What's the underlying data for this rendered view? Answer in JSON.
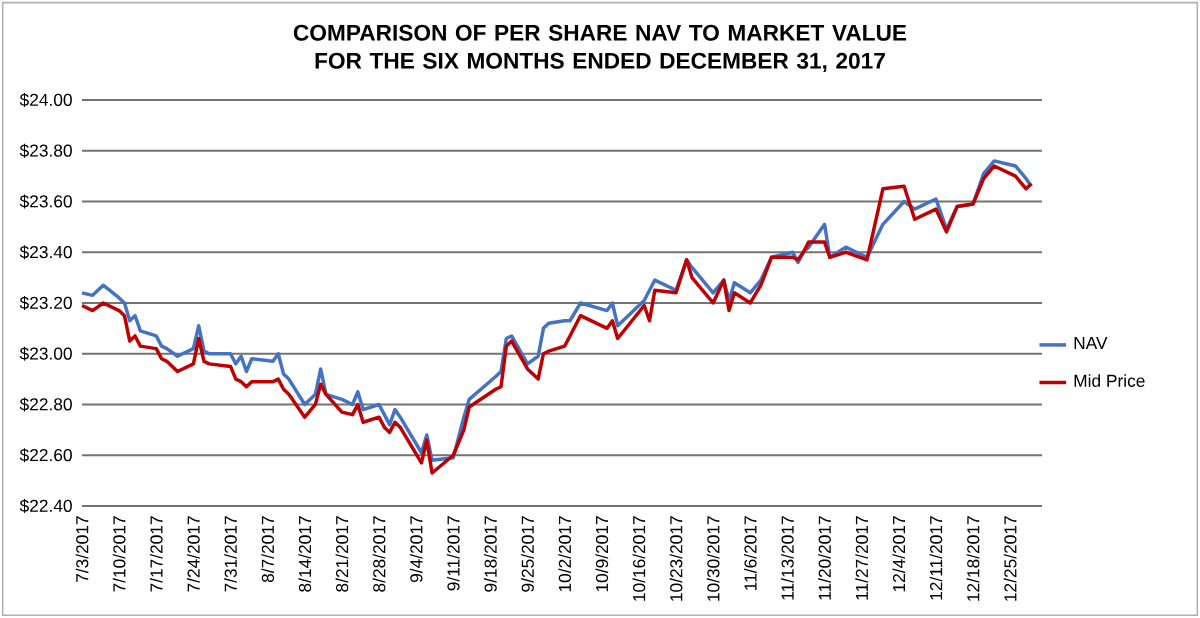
{
  "chart_data": {
    "type": "line",
    "title": "COMPARISON OF PER SHARE NAV TO MARKET VALUE FOR THE SIX MONTHS ENDED DECEMBER 31, 2017",
    "x": [
      "2017-07-03",
      "2017-07-05",
      "2017-07-07",
      "2017-07-10",
      "2017-07-11",
      "2017-07-12",
      "2017-07-13",
      "2017-07-14",
      "2017-07-17",
      "2017-07-18",
      "2017-07-19",
      "2017-07-21",
      "2017-07-24",
      "2017-07-25",
      "2017-07-26",
      "2017-07-27",
      "2017-07-31",
      "2017-08-01",
      "2017-08-02",
      "2017-08-03",
      "2017-08-04",
      "2017-08-08",
      "2017-08-09",
      "2017-08-10",
      "2017-08-11",
      "2017-08-14",
      "2017-08-16",
      "2017-08-17",
      "2017-08-18",
      "2017-08-21",
      "2017-08-23",
      "2017-08-24",
      "2017-08-25",
      "2017-08-28",
      "2017-08-29",
      "2017-08-30",
      "2017-08-31",
      "2017-09-01",
      "2017-09-05",
      "2017-09-06",
      "2017-09-07",
      "2017-09-11",
      "2017-09-13",
      "2017-09-14",
      "2017-09-19",
      "2017-09-20",
      "2017-09-21",
      "2017-09-22",
      "2017-09-25",
      "2017-09-27",
      "2017-09-28",
      "2017-09-29",
      "2017-10-02",
      "2017-10-03",
      "2017-10-05",
      "2017-10-10",
      "2017-10-11",
      "2017-10-12",
      "2017-10-17",
      "2017-10-18",
      "2017-10-19",
      "2017-10-23",
      "2017-10-25",
      "2017-10-26",
      "2017-10-30",
      "2017-11-01",
      "2017-11-02",
      "2017-11-03",
      "2017-11-06",
      "2017-11-08",
      "2017-11-10",
      "2017-11-14",
      "2017-11-15",
      "2017-11-16",
      "2017-11-17",
      "2017-11-20",
      "2017-11-21",
      "2017-11-24",
      "2017-11-28",
      "2017-12-01",
      "2017-12-05",
      "2017-12-07",
      "2017-12-11",
      "2017-12-13",
      "2017-12-15",
      "2017-12-18",
      "2017-12-20",
      "2017-12-22",
      "2017-12-26",
      "2017-12-28",
      "2017-12-29"
    ],
    "series": [
      {
        "name": "NAV",
        "color": "#4472c4",
        "values": [
          23.24,
          23.23,
          23.27,
          23.22,
          23.2,
          23.13,
          23.15,
          23.09,
          23.07,
          23.03,
          23.02,
          22.99,
          23.02,
          23.11,
          23.01,
          23.0,
          23.0,
          22.96,
          22.99,
          22.93,
          22.98,
          22.97,
          23.0,
          22.92,
          22.9,
          22.8,
          22.84,
          22.94,
          22.84,
          22.82,
          22.8,
          22.85,
          22.78,
          22.8,
          22.76,
          22.72,
          22.78,
          22.75,
          22.61,
          22.68,
          22.58,
          22.59,
          22.75,
          22.82,
          22.91,
          22.93,
          23.06,
          23.07,
          22.96,
          22.99,
          23.1,
          23.12,
          23.13,
          23.13,
          23.2,
          23.17,
          23.2,
          23.11,
          23.21,
          23.25,
          23.29,
          23.25,
          23.37,
          23.34,
          23.24,
          23.29,
          23.21,
          23.28,
          23.24,
          23.29,
          23.38,
          23.4,
          23.36,
          23.4,
          23.42,
          23.51,
          23.38,
          23.42,
          23.38,
          23.51,
          23.6,
          23.57,
          23.61,
          23.49,
          23.58,
          23.59,
          23.71,
          23.76,
          23.74,
          23.69,
          23.66
        ]
      },
      {
        "name": "Mid Price",
        "color": "#c00000",
        "values": [
          23.19,
          23.17,
          23.2,
          23.17,
          23.15,
          23.05,
          23.07,
          23.03,
          23.02,
          22.98,
          22.97,
          22.93,
          22.96,
          23.06,
          22.97,
          22.96,
          22.95,
          22.9,
          22.89,
          22.87,
          22.89,
          22.89,
          22.9,
          22.86,
          22.84,
          22.75,
          22.8,
          22.88,
          22.84,
          22.77,
          22.76,
          22.8,
          22.73,
          22.75,
          22.71,
          22.69,
          22.73,
          22.71,
          22.57,
          22.66,
          22.53,
          22.6,
          22.7,
          22.79,
          22.86,
          22.87,
          23.03,
          23.05,
          22.94,
          22.9,
          23.0,
          23.01,
          23.03,
          23.07,
          23.15,
          23.1,
          23.13,
          23.06,
          23.19,
          23.13,
          23.25,
          23.24,
          23.37,
          23.3,
          23.2,
          23.29,
          23.17,
          23.24,
          23.2,
          23.27,
          23.38,
          23.38,
          23.37,
          23.4,
          23.44,
          23.44,
          23.38,
          23.4,
          23.37,
          23.65,
          23.66,
          23.53,
          23.57,
          23.48,
          23.58,
          23.59,
          23.69,
          23.74,
          23.7,
          23.65,
          23.67
        ]
      }
    ],
    "xlim": [
      "2017-07-03",
      "2017-12-31"
    ],
    "xticks": [
      {
        "value": "2017-07-03",
        "label": "7/3/2017"
      },
      {
        "value": "2017-07-10",
        "label": "7/10/2017"
      },
      {
        "value": "2017-07-17",
        "label": "7/17/2017"
      },
      {
        "value": "2017-07-24",
        "label": "7/24/2017"
      },
      {
        "value": "2017-07-31",
        "label": "7/31/2017"
      },
      {
        "value": "2017-08-07",
        "label": "8/7/2017"
      },
      {
        "value": "2017-08-14",
        "label": "8/14/2017"
      },
      {
        "value": "2017-08-21",
        "label": "8/21/2017"
      },
      {
        "value": "2017-08-28",
        "label": "8/28/2017"
      },
      {
        "value": "2017-09-04",
        "label": "9/4/2017"
      },
      {
        "value": "2017-09-11",
        "label": "9/11/2017"
      },
      {
        "value": "2017-09-18",
        "label": "9/18/2017"
      },
      {
        "value": "2017-09-25",
        "label": "9/25/2017"
      },
      {
        "value": "2017-10-02",
        "label": "10/2/2017"
      },
      {
        "value": "2017-10-09",
        "label": "10/9/2017"
      },
      {
        "value": "2017-10-16",
        "label": "10/16/2017"
      },
      {
        "value": "2017-10-23",
        "label": "10/23/2017"
      },
      {
        "value": "2017-10-30",
        "label": "10/30/2017"
      },
      {
        "value": "2017-11-06",
        "label": "11/6/2017"
      },
      {
        "value": "2017-11-13",
        "label": "11/13/2017"
      },
      {
        "value": "2017-11-20",
        "label": "11/20/2017"
      },
      {
        "value": "2017-11-27",
        "label": "11/27/2017"
      },
      {
        "value": "2017-12-04",
        "label": "12/4/2017"
      },
      {
        "value": "2017-12-11",
        "label": "12/11/2017"
      },
      {
        "value": "2017-12-18",
        "label": "12/18/2017"
      },
      {
        "value": "2017-12-25",
        "label": "12/25/2017"
      }
    ],
    "ylim": [
      22.4,
      24.0
    ],
    "yticks": [
      {
        "value": 22.4,
        "label": "$22.40"
      },
      {
        "value": 22.6,
        "label": "$22.60"
      },
      {
        "value": 22.8,
        "label": "$22.80"
      },
      {
        "value": 23.0,
        "label": "$23.00"
      },
      {
        "value": 23.2,
        "label": "$23.20"
      },
      {
        "value": 23.4,
        "label": "$23.40"
      },
      {
        "value": 23.6,
        "label": "$23.60"
      },
      {
        "value": 23.8,
        "label": "$23.80"
      },
      {
        "value": 24.0,
        "label": "$24.00"
      }
    ],
    "grid": "y",
    "legend": "right"
  }
}
